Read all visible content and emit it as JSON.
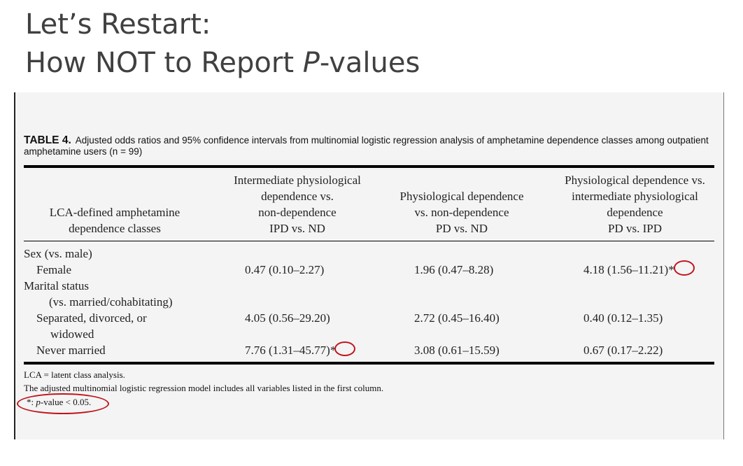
{
  "slide": {
    "title_line1": "Let’s Restart:",
    "title_line2_pre": "How NOT to Report ",
    "title_line2_italic": "P",
    "title_line2_post": "-values"
  },
  "table": {
    "caption_label": "TABLE 4.",
    "caption_text": "Adjusted odds ratios and 95% confidence intervals from multinomial logistic regression analysis of amphetamine dependence classes among outpatient amphetamine users (n = 99)",
    "col0_header": [
      "LCA-defined amphetamine",
      "dependence classes"
    ],
    "col1_header": [
      "Intermediate physiological",
      "dependence vs.",
      "non-dependence",
      "IPD vs. ND"
    ],
    "col2_header": [
      "Physiological dependence",
      "vs. non-dependence",
      "PD vs. ND"
    ],
    "col3_header": [
      "Physiological dependence vs.",
      "intermediate physiological",
      "dependence",
      "PD vs. IPD"
    ],
    "rows": {
      "sex_label": "Sex (vs. male)",
      "female_label": "Female",
      "female": [
        "0.47 (0.10–2.27)",
        "1.96 (0.47–8.28)",
        "4.18 (1.56–11.21)*"
      ],
      "marital_label": "Marital status",
      "marital_sub": "(vs. married/cohabitating)",
      "separated_label": [
        "Separated, divorced, or",
        "widowed"
      ],
      "separated": [
        "4.05 (0.56–29.20)",
        "2.72 (0.45–16.40)",
        "0.40 (0.12–1.35)"
      ],
      "never_label": "Never married",
      "never": [
        "7.76 (1.31–45.77)*",
        "3.08 (0.61–15.59)",
        "0.67 (0.17–2.22)"
      ]
    },
    "notes": {
      "line1": "LCA = latent class analysis.",
      "line2": "The adjusted multinomial logistic regression model includes all variables listed in the first column.",
      "line3_star": "*: ",
      "line3_p": "p",
      "line3_rest": "-value < 0.05."
    }
  },
  "colors": {
    "annotation": "#c0141c",
    "title": "#404040"
  }
}
